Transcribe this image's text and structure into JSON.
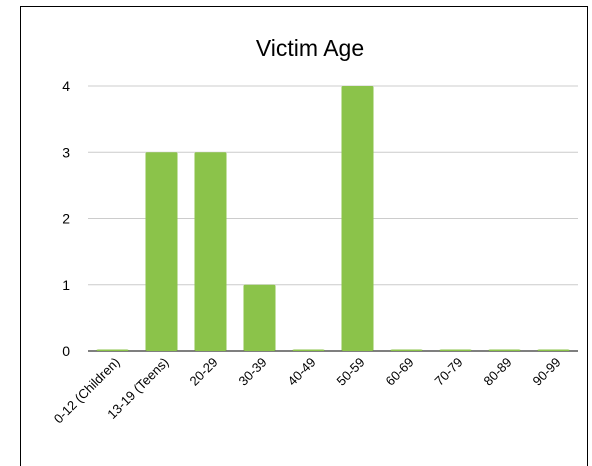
{
  "chart_data": {
    "type": "bar",
    "title": "Victim Age",
    "categories": [
      "0-12 (Children)",
      "13-19 (Teens)",
      "20-29",
      "30-39",
      "40-49",
      "50-59",
      "60-69",
      "70-79",
      "80-89",
      "90-99"
    ],
    "values": [
      0,
      3,
      3,
      1,
      0,
      4,
      0,
      0,
      0,
      0
    ],
    "ylim": [
      0,
      4
    ],
    "yticks": [
      "0",
      "1",
      "2",
      "3",
      "4"
    ],
    "xlabel": "",
    "ylabel": "",
    "grid": true,
    "bar_color": "#8bc34a"
  }
}
